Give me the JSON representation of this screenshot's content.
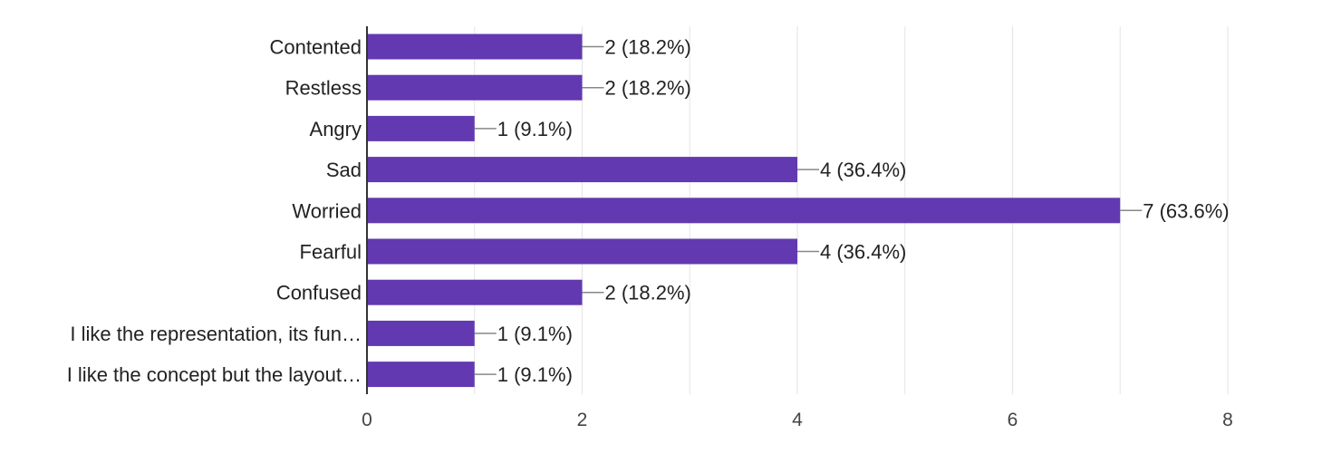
{
  "chart_data": {
    "type": "bar",
    "orientation": "horizontal",
    "title": "",
    "xlabel": "",
    "ylabel": "",
    "xlim": [
      0,
      8
    ],
    "x_ticks": [
      0,
      2,
      4,
      6,
      8
    ],
    "grid": true,
    "categories": [
      "Contented",
      "Restless",
      "Angry",
      "Sad",
      "Worried",
      "Fearful",
      "Confused",
      "I like the representation, its fun…",
      "I like the concept but the layout…"
    ],
    "values": [
      2,
      2,
      1,
      4,
      7,
      4,
      2,
      1,
      1
    ],
    "data_labels": [
      "2 (18.2%)",
      "2 (18.2%)",
      "1 (9.1%)",
      "4 (36.4%)",
      "7 (63.6%)",
      "4 (36.4%)",
      "2 (18.2%)",
      "1 (9.1%)",
      "1 (9.1%)"
    ],
    "tick_labels": [
      "0",
      "2",
      "4",
      "6",
      "8"
    ]
  },
  "colors": {
    "bar": "#6239b0",
    "grid": "#e6e6e6",
    "axis": "#333333",
    "leader": "#888888"
  }
}
